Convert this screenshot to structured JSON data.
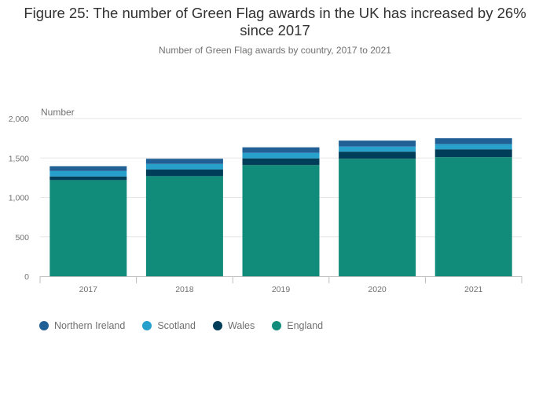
{
  "chart_data": {
    "type": "bar",
    "stacked": true,
    "title": "Figure 25: The number of Green Flag awards in the UK has increased by 26% since 2017",
    "subtitle": "Number of Green Flag awards by country, 2017 to 2021",
    "ylabel": "Number",
    "xlabel": "",
    "ylim": [
      0,
      2000
    ],
    "yticks": [
      "0",
      "500",
      "1,000",
      "1,500",
      "2,000"
    ],
    "ytick_values": [
      0,
      500,
      1000,
      1500,
      2000
    ],
    "categories": [
      "2017",
      "2018",
      "2019",
      "2020",
      "2021"
    ],
    "series": [
      {
        "name": "England",
        "color": "#118c7b",
        "values": [
          1220,
          1270,
          1410,
          1490,
          1510
        ]
      },
      {
        "name": "Wales",
        "color": "#003d59",
        "values": [
          45,
          85,
          85,
          90,
          100
        ]
      },
      {
        "name": "Scotland",
        "color": "#27a0cc",
        "values": [
          70,
          70,
          70,
          65,
          65
        ]
      },
      {
        "name": "Northern Ireland",
        "color": "#206095",
        "values": [
          60,
          65,
          70,
          75,
          75
        ]
      }
    ],
    "legend_order": [
      "Northern Ireland",
      "Scotland",
      "Wales",
      "England"
    ],
    "legend_position": "bottom-left"
  }
}
